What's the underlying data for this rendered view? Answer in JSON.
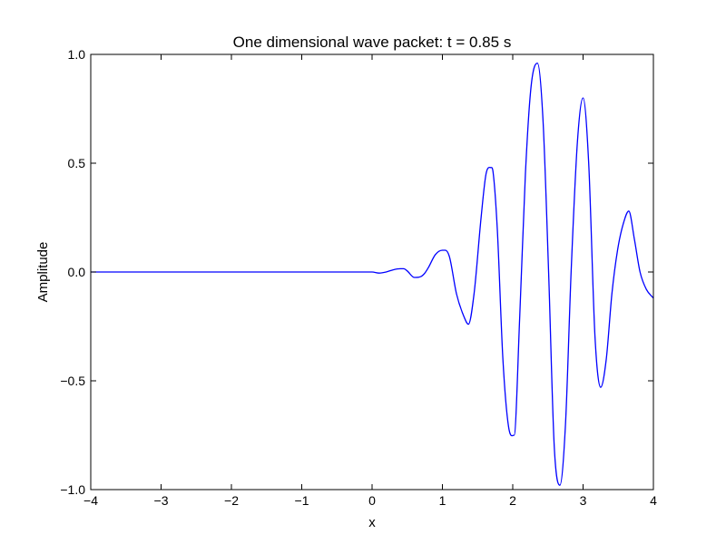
{
  "chart_data": {
    "type": "line",
    "title": "One dimensional wave packet: t = 0.85 s",
    "xlabel": "x",
    "ylabel": "Amplitude",
    "xlim": [
      -4,
      4
    ],
    "ylim": [
      -1.0,
      1.0
    ],
    "xticks": [
      -4,
      -3,
      -2,
      -1,
      0,
      1,
      2,
      3,
      4
    ],
    "xtick_labels": [
      "−4",
      "−3",
      "−2",
      "−1",
      "0",
      "1",
      "2",
      "3",
      "4"
    ],
    "yticks": [
      -1.0,
      -0.5,
      0.0,
      0.5,
      1.0
    ],
    "ytick_labels": [
      "−1.0",
      "−0.5",
      "0.0",
      "0.5",
      "1.0"
    ],
    "grid": false,
    "line_color": "#0000ff",
    "series": [
      {
        "x": [
          -4.0,
          -1.0,
          0.0,
          0.1,
          0.2,
          0.3,
          0.4,
          0.45,
          0.5,
          0.6,
          0.7,
          0.75,
          0.8,
          0.9,
          1.0,
          1.04,
          1.1,
          1.2,
          1.3,
          1.37,
          1.45,
          1.55,
          1.62,
          1.69,
          1.72,
          1.78,
          1.86,
          1.94,
          2.02,
          2.1,
          2.18,
          2.26,
          2.35,
          2.43,
          2.51,
          2.59,
          2.67,
          2.75,
          2.83,
          2.92,
          3.0,
          3.08,
          3.17,
          3.25,
          3.33,
          3.41,
          3.49,
          3.57,
          3.65,
          3.73,
          3.81,
          3.9,
          4.0
        ],
        "y": [
          0.0,
          0.0,
          0.0,
          -0.005,
          0.0,
          0.01,
          0.015,
          0.015,
          0.005,
          -0.025,
          -0.02,
          -0.005,
          0.02,
          0.08,
          0.1,
          0.1,
          0.07,
          -0.1,
          -0.2,
          -0.24,
          -0.1,
          0.25,
          0.45,
          0.48,
          0.46,
          0.2,
          -0.4,
          -0.71,
          -0.75,
          -0.2,
          0.45,
          0.85,
          0.96,
          0.7,
          0.0,
          -0.8,
          -0.98,
          -0.7,
          0.0,
          0.6,
          0.8,
          0.5,
          -0.3,
          -0.53,
          -0.4,
          -0.1,
          0.1,
          0.22,
          0.28,
          0.15,
          0.0,
          -0.08,
          -0.12
        ]
      }
    ]
  }
}
